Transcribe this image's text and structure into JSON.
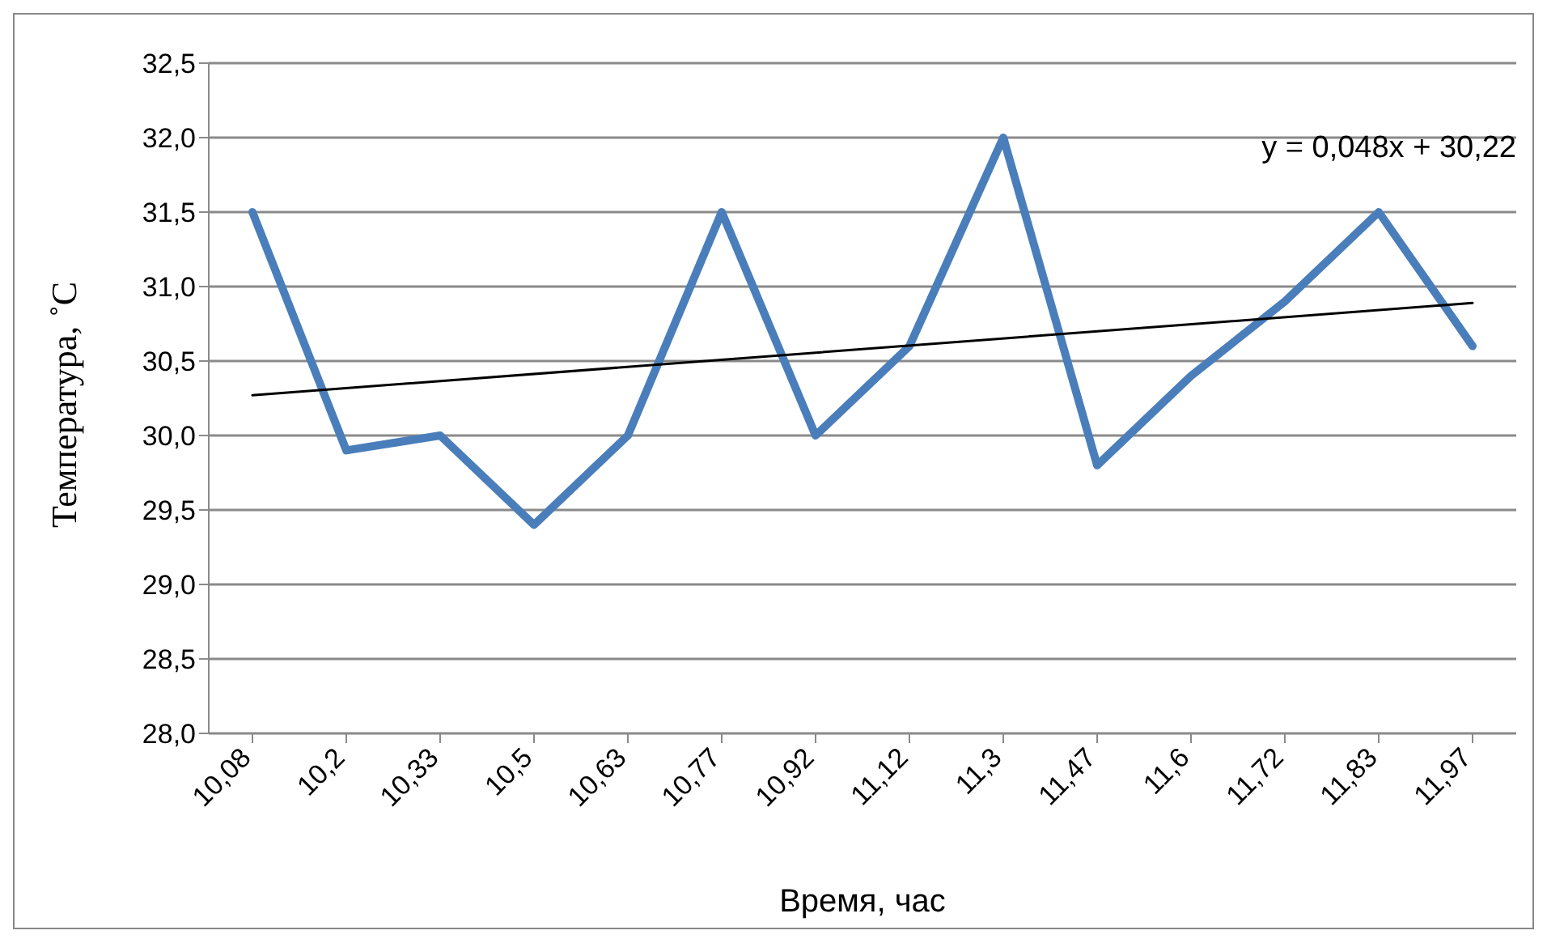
{
  "chart_data": {
    "type": "line",
    "xlabel": "Время, час",
    "ylabel": "Температура, ˚С",
    "categories": [
      "10,08",
      "10,2",
      "10,33",
      "10,5",
      "10,63",
      "10,77",
      "10,92",
      "11,12",
      "11,3",
      "11,47",
      "11,6",
      "11,72",
      "11,83",
      "11,97"
    ],
    "series": [
      {
        "color": "#4a7ebb",
        "values": [
          31.5,
          29.9,
          30.0,
          29.4,
          30.0,
          31.5,
          30.0,
          30.6,
          32.0,
          29.8,
          30.4,
          30.9,
          31.5,
          30.6
        ]
      },
      {
        "type": "line",
        "color": "#000000",
        "x": [
          "10,08",
          "11,97"
        ],
        "values": [
          30.27,
          30.89
        ]
      }
    ],
    "ylim": [
      28,
      32.5
    ],
    "yticks": [
      {
        "value": 28,
        "label": "28,0"
      },
      {
        "value": 28.5,
        "label": "28,5"
      },
      {
        "value": 29,
        "label": "29,0"
      },
      {
        "value": 29.5,
        "label": "29,5"
      },
      {
        "value": 30,
        "label": "30,0"
      },
      {
        "value": 30.5,
        "label": "30,5"
      },
      {
        "value": 31,
        "label": "31,0"
      },
      {
        "value": 31.5,
        "label": "31,5"
      },
      {
        "value": 32,
        "label": "32,0"
      },
      {
        "value": 32.5,
        "label": "32,5"
      }
    ],
    "grid": "y",
    "marker": "none",
    "annotations": [
      "y = 0,048x + 30,22"
    ]
  }
}
